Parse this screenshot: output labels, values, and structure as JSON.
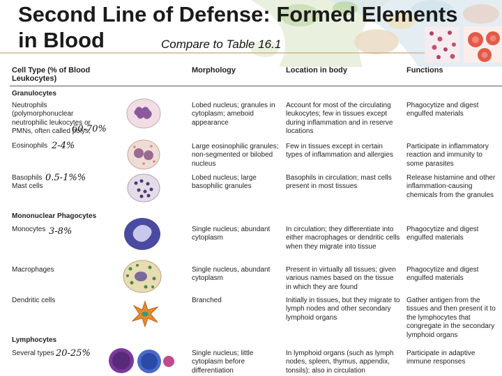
{
  "title_line1": "Second Line of Defense: Formed Elements",
  "title_line2": "in Blood",
  "subtitle": "Compare to Table 16.1",
  "headers": {
    "cell_type": "Cell Type (% of Blood Leukocytes)",
    "morphology": "Morphology",
    "location": "Location in body",
    "functions": "Functions"
  },
  "sections": {
    "granulocytes": "Granulocytes",
    "mononuclear": "Mononuclear Phagocytes",
    "lymphocytes": "Lymphocytes"
  },
  "rows": {
    "neutrophils": {
      "type": "Neutrophils (polymorphonuclear neutrophilic leukocytes or PMNs, often called polys;",
      "percent": "60-70%",
      "morphology": "Lobed nucleus; granules in cytoplasm; ameboid appearance",
      "location": "Account for most of the circulating leukocytes; few in tissues except during inflammation and in reserve locations",
      "functions": "Phagocytize and digest engulfed materials"
    },
    "eosinophils": {
      "type": "Eosinophils",
      "percent": "2-4%",
      "morphology": "Large eosinophilic granules; non-segmented or bilobed nucleus",
      "location": "Few in tissues except in certain types of inflammation and allergies",
      "functions": "Participate in inflammatory reaction and immunity to some parasites"
    },
    "basophils": {
      "type": "Basophils Mast cells",
      "percent": "0.5-1%%",
      "morphology": "Lobed nucleus; large basophilic granules",
      "location": "Basophils in circulation; mast cells present in most tissues",
      "functions": "Release histamine and other inflammation-causing chemicals from the granules"
    },
    "monocytes": {
      "type": "Monocytes",
      "percent": "3-8%",
      "morphology": "Single nucleus; abundant cytoplasm",
      "location": "In circulation; they differentiate into either macrophages or dendritic cells when they migrate into tissue",
      "functions": "Phagocytize and digest engulfed materials"
    },
    "macrophages": {
      "type": "Macrophages",
      "morphology": "Single nucleus, abundant cytoplasm",
      "location": "Present in virtually all tissues; given various names based on the tissue in which they are found",
      "functions": "Phagocytize and digest engulfed materials"
    },
    "dendritic": {
      "type": "Dendritic cells",
      "morphology": "Branched",
      "location": "Initially in tissues, but they migrate to lymph nodes and other secondary lymphoid organs",
      "functions": "Gather antigen from the tissues and then present it to the lymphocytes that congregate in the secondary lymphoid organs"
    },
    "lymphocytes": {
      "type": "Several types",
      "percent": "20-25%",
      "morphology": "Single nucleus; little cytoplasm before differentiation",
      "location": "In lymphoid organs (such as lymph nodes, spleen, thymus, appendix, tonsils); also in circulation",
      "functions": "Participate in adaptive immune responses"
    }
  }
}
